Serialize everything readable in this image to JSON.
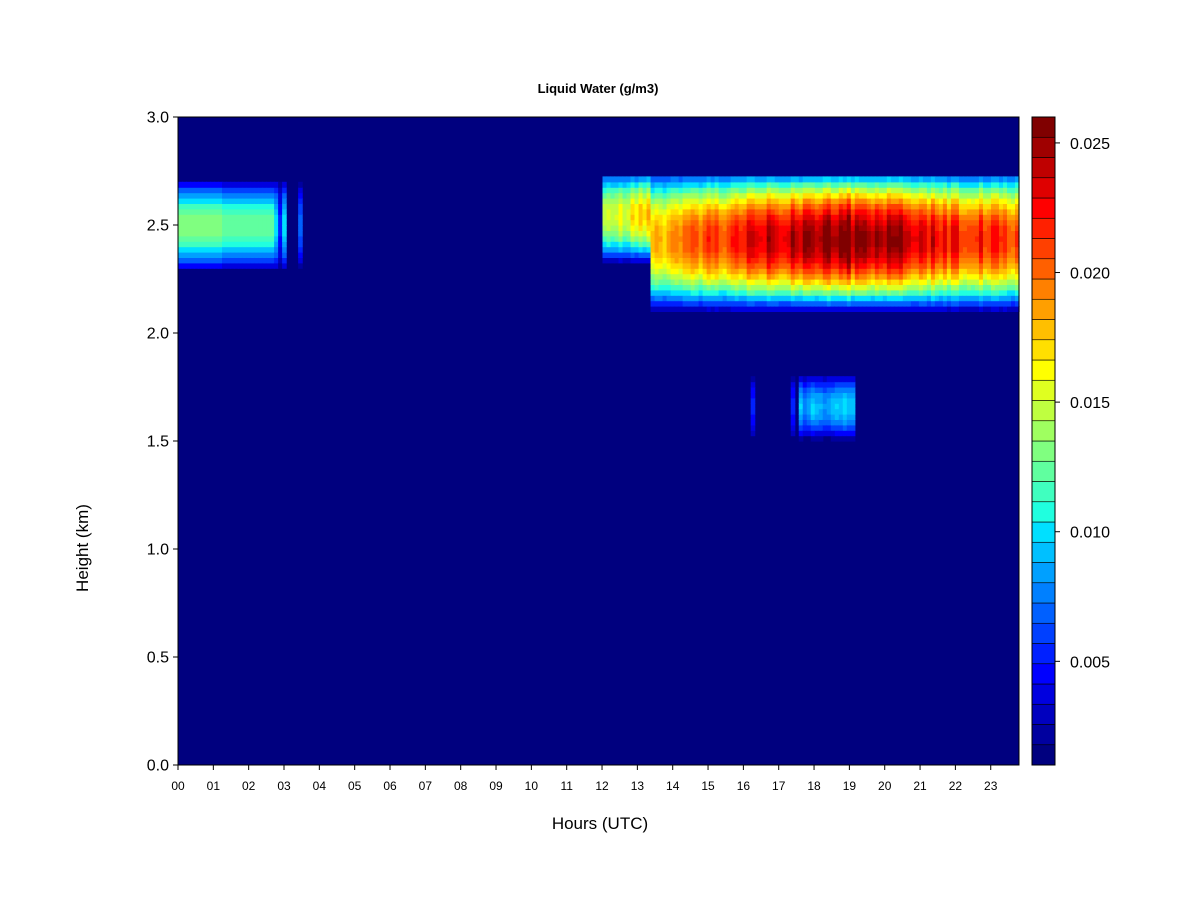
{
  "chart_data": {
    "type": "heatmap",
    "title": "Liquid Water (g/m3)",
    "xlabel": "Hours (UTC)",
    "ylabel": "Height (km)",
    "xlim": [
      0,
      23.8
    ],
    "ylim": [
      0,
      3.0
    ],
    "x_ticks": [
      {
        "value": 0,
        "label": "00"
      },
      {
        "value": 1,
        "label": "01"
      },
      {
        "value": 2,
        "label": "02"
      },
      {
        "value": 3,
        "label": "03"
      },
      {
        "value": 4,
        "label": "04"
      },
      {
        "value": 5,
        "label": "05"
      },
      {
        "value": 6,
        "label": "06"
      },
      {
        "value": 7,
        "label": "07"
      },
      {
        "value": 8,
        "label": "08"
      },
      {
        "value": 9,
        "label": "09"
      },
      {
        "value": 10,
        "label": "10"
      },
      {
        "value": 11,
        "label": "11"
      },
      {
        "value": 12,
        "label": "12"
      },
      {
        "value": 13,
        "label": "13"
      },
      {
        "value": 14,
        "label": "14"
      },
      {
        "value": 15,
        "label": "15"
      },
      {
        "value": 16,
        "label": "16"
      },
      {
        "value": 17,
        "label": "17"
      },
      {
        "value": 18,
        "label": "18"
      },
      {
        "value": 19,
        "label": "19"
      },
      {
        "value": 20,
        "label": "20"
      },
      {
        "value": 21,
        "label": "21"
      },
      {
        "value": 22,
        "label": "22"
      },
      {
        "value": 23,
        "label": "23"
      }
    ],
    "y_ticks": [
      {
        "value": 0.0,
        "label": "0.0"
      },
      {
        "value": 0.5,
        "label": "0.5"
      },
      {
        "value": 1.0,
        "label": "1.0"
      },
      {
        "value": 1.5,
        "label": "1.5"
      },
      {
        "value": 2.0,
        "label": "2.0"
      },
      {
        "value": 2.5,
        "label": "2.5"
      },
      {
        "value": 3.0,
        "label": "3.0"
      }
    ],
    "colorbar": {
      "min": 0.001,
      "max": 0.026,
      "colors": [
        "#00007F",
        "#00009F",
        "#0000BF",
        "#0000DF",
        "#0000FF",
        "#0020FF",
        "#0040FF",
        "#0060FF",
        "#0080FF",
        "#00A0FF",
        "#00C0FF",
        "#00E0FF",
        "#20FFDF",
        "#40FFBF",
        "#60FF9F",
        "#80FF80",
        "#9FFF60",
        "#BFFF40",
        "#DFFF20",
        "#FFFF00",
        "#FFDF00",
        "#FFBF00",
        "#FF9F00",
        "#FF8000",
        "#FF6000",
        "#FF4000",
        "#FF2000",
        "#FF0000",
        "#DF0000",
        "#BF0000",
        "#9F0000",
        "#800000"
      ],
      "ticks": [
        {
          "value": 0.005,
          "label": "0.005"
        },
        {
          "value": 0.01,
          "label": "0.010"
        },
        {
          "value": 0.015,
          "label": "0.015"
        },
        {
          "value": 0.02,
          "label": "0.020"
        },
        {
          "value": 0.025,
          "label": "0.025"
        }
      ]
    },
    "cloud_layers": [
      {
        "x0": 0.0,
        "x1": 3.6,
        "y_center": 2.5,
        "half_thickness": 0.2,
        "peak": 0.0135
      },
      {
        "x0": 12.0,
        "x1": 23.8,
        "y_center": 2.48,
        "half_thickness": 0.3,
        "peak": 0.026
      },
      {
        "x0": 17.3,
        "x1": 19.2,
        "y_center": 1.66,
        "half_thickness": 0.13,
        "peak": 0.0105
      }
    ]
  }
}
